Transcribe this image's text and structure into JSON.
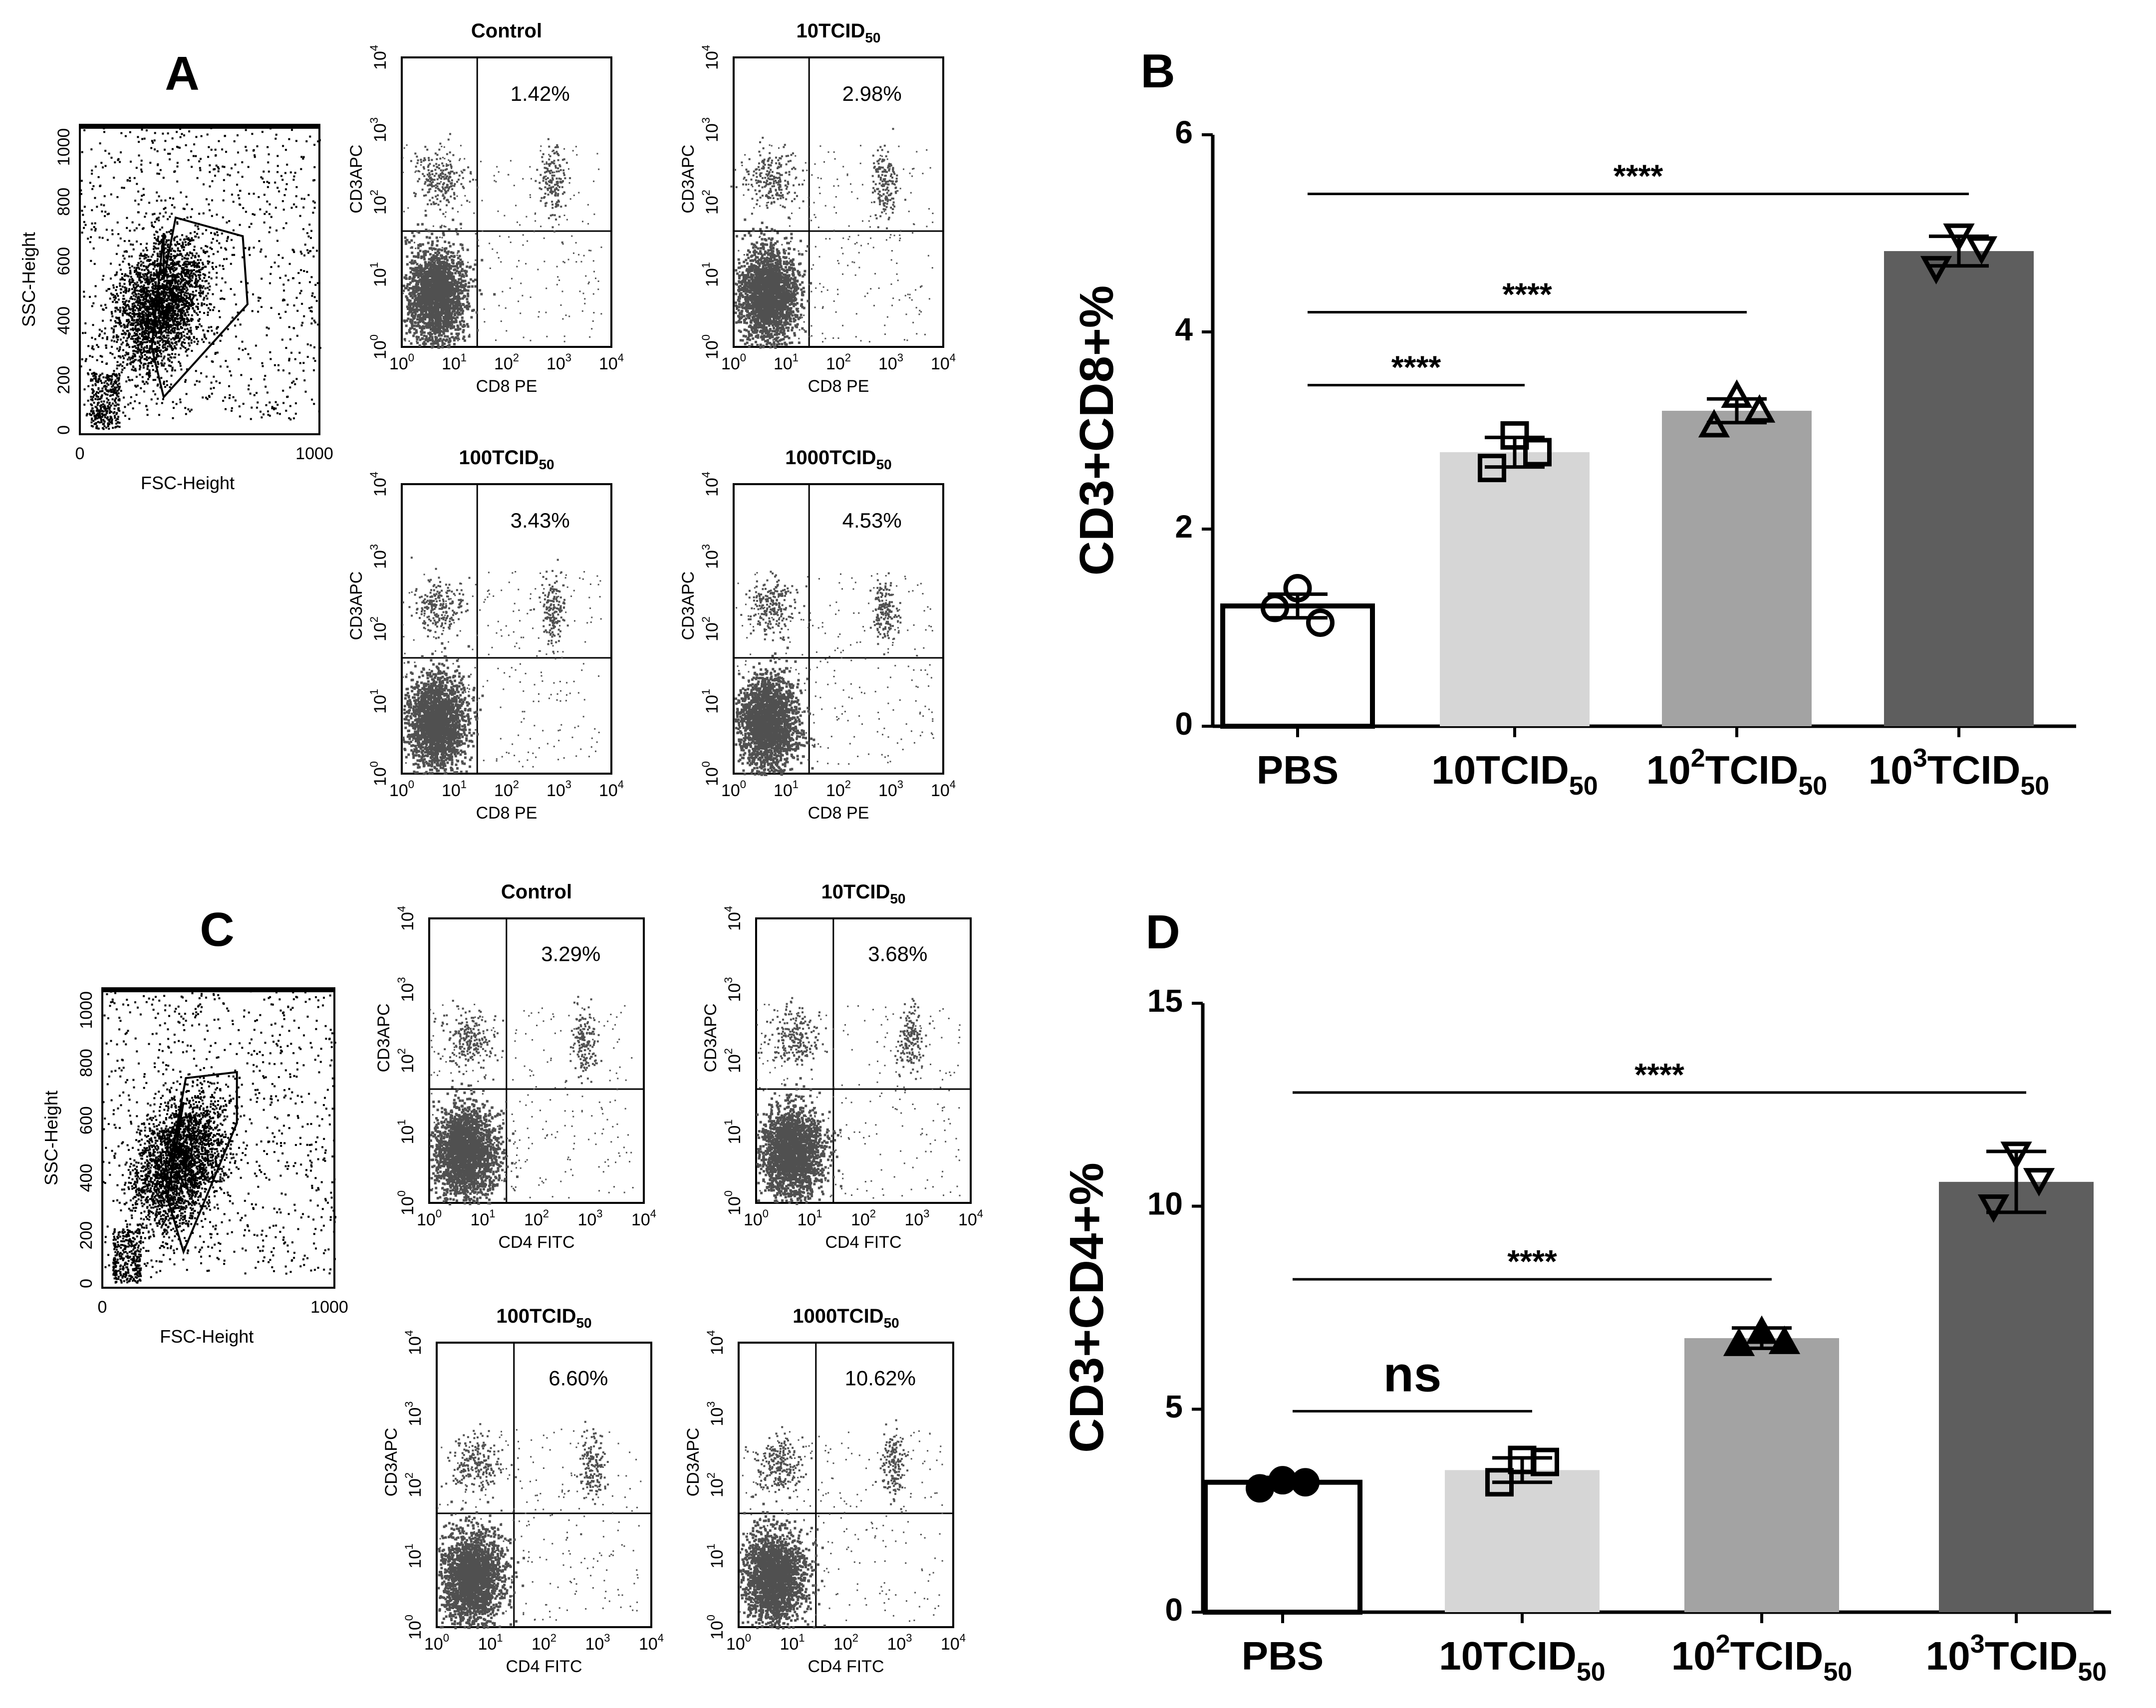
{
  "panel_letters": [
    "A",
    "B",
    "C",
    "D"
  ],
  "flow": {
    "scatter_axis": {
      "x_label": "FSC-Height",
      "y_label": "SSC-Height",
      "x_ticks": [
        "0",
        "1000"
      ],
      "y_ticks": [
        "0",
        "200",
        "400",
        "600",
        "800",
        "1000"
      ]
    },
    "log_ticks": [
      "10",
      "10",
      "10",
      "10",
      "10"
    ],
    "log_exps": [
      "0",
      "1",
      "2",
      "3",
      "4"
    ],
    "y_channel": "CD3APC",
    "cd8_channel": "CD8 PE",
    "cd4_channel": "CD4 FITC",
    "titles": [
      "Control",
      "10TCID",
      "100TCID",
      "1000TCID"
    ],
    "title_sub": "50",
    "cd8_percents": [
      "1.42%",
      "2.98%",
      "3.43%",
      "4.53%"
    ],
    "cd4_percents": [
      "3.29%",
      "3.68%",
      "6.60%",
      "10.62%"
    ]
  },
  "chart_data": [
    {
      "panel": "B",
      "type": "bar",
      "title": "",
      "xlabel": "",
      "ylabel": "CD3+CD8+%",
      "ylim": [
        0,
        6
      ],
      "yticks": [
        0,
        2,
        4,
        6
      ],
      "categories": [
        "PBS",
        "10TCID50",
        "10^2TCID50",
        "10^3TCID50"
      ],
      "category_parts": [
        {
          "base": "PBS",
          "sup": "",
          "mid": "",
          "sub": ""
        },
        {
          "base": "10TCID",
          "sup": "",
          "mid": "",
          "sub": "50"
        },
        {
          "base": "10",
          "sup": "2",
          "mid": "TCID",
          "sub": "50"
        },
        {
          "base": "10",
          "sup": "3",
          "mid": "TCID",
          "sub": "50"
        }
      ],
      "values": [
        1.22,
        2.78,
        3.2,
        4.82
      ],
      "errors": [
        0.12,
        0.15,
        0.12,
        0.15
      ],
      "points": [
        [
          1.4,
          1.2,
          1.05
        ],
        [
          2.95,
          2.62,
          2.78
        ],
        [
          3.35,
          3.05,
          3.2
        ],
        [
          4.98,
          4.65,
          4.85
        ]
      ],
      "markers": [
        "circle",
        "square",
        "triangle-up",
        "triangle-down"
      ],
      "colors": [
        "#ffffff",
        "#d6d6d6",
        "#a3a3a3",
        "#5e5e5e"
      ],
      "significance": [
        {
          "from": 0,
          "to": 1,
          "label": "****",
          "level": 3.46
        },
        {
          "from": 0,
          "to": 2,
          "label": "****",
          "level": 4.2
        },
        {
          "from": 0,
          "to": 3,
          "label": "****",
          "level": 5.4
        }
      ]
    },
    {
      "panel": "D",
      "type": "bar",
      "title": "",
      "xlabel": "",
      "ylabel": "CD3+CD4+%",
      "ylim": [
        0,
        15
      ],
      "yticks": [
        0,
        5,
        10,
        15
      ],
      "categories": [
        "PBS",
        "10TCID50",
        "10^2TCID50",
        "10^3TCID50"
      ],
      "category_parts": [
        {
          "base": "PBS",
          "sup": "",
          "mid": "",
          "sub": ""
        },
        {
          "base": "10TCID",
          "sup": "",
          "mid": "",
          "sub": "50"
        },
        {
          "base": "10",
          "sup": "2",
          "mid": "TCID",
          "sub": "50"
        },
        {
          "base": "10",
          "sup": "3",
          "mid": "TCID",
          "sub": "50"
        }
      ],
      "values": [
        3.2,
        3.5,
        6.75,
        10.6
      ],
      "errors": [
        0.12,
        0.3,
        0.25,
        0.75
      ],
      "points": [
        [
          3.25,
          3.05,
          3.2
        ],
        [
          3.75,
          3.2,
          3.7
        ],
        [
          6.9,
          6.6,
          6.65
        ],
        [
          11.3,
          10.0,
          10.65
        ]
      ],
      "markers": [
        "circle-filled",
        "square",
        "triangle-up-filled",
        "triangle-down"
      ],
      "colors": [
        "#ffffff",
        "#d6d6d6",
        "#a3a3a3",
        "#5e5e5e"
      ],
      "significance": [
        {
          "from": 0,
          "to": 1,
          "label": "ns",
          "level": 4.95
        },
        {
          "from": 0,
          "to": 2,
          "label": "****",
          "level": 8.2
        },
        {
          "from": 0,
          "to": 3,
          "label": "****",
          "level": 12.8
        }
      ]
    }
  ]
}
